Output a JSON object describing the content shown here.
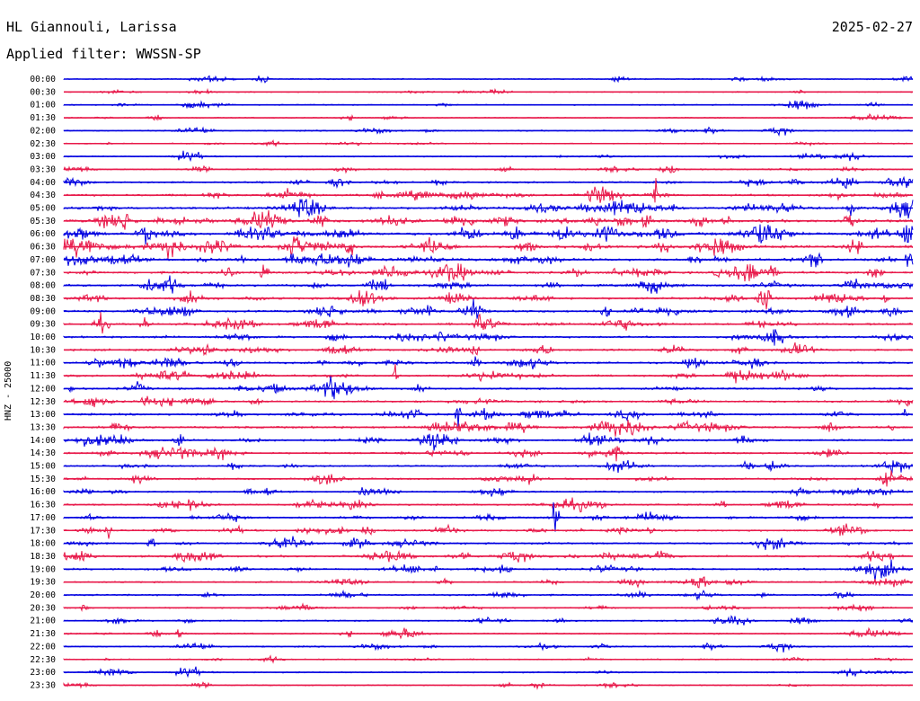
{
  "header": {
    "station": "HL Giannouli, Larissa",
    "date": "2025-02-27",
    "filter": "Applied filter: WWSSN-SP"
  },
  "chart_data": {
    "type": "line",
    "title": "HL Giannouli, Larissa",
    "ylabel": "HNZ - 25000",
    "row_labels": [
      "00:00",
      "00:30",
      "01:00",
      "01:30",
      "02:00",
      "02:30",
      "03:00",
      "03:30",
      "04:00",
      "04:30",
      "05:00",
      "05:30",
      "06:00",
      "06:30",
      "07:00",
      "07:30",
      "08:00",
      "08:30",
      "09:00",
      "09:30",
      "10:00",
      "10:30",
      "11:00",
      "11:30",
      "12:00",
      "12:30",
      "13:00",
      "13:30",
      "14:00",
      "14:30",
      "15:00",
      "15:30",
      "16:00",
      "16:30",
      "17:00",
      "17:30",
      "18:00",
      "18:30",
      "19:00",
      "19:30",
      "20:00",
      "20:30",
      "21:00",
      "21:30",
      "22:00",
      "22:30",
      "23:00",
      "23:30"
    ],
    "series_colors": [
      "#0000e0",
      "#e8194a"
    ],
    "activity_level": [
      0.15,
      0.12,
      0.12,
      0.12,
      0.18,
      0.15,
      0.2,
      0.25,
      0.45,
      0.55,
      0.75,
      0.95,
      1.0,
      0.9,
      0.8,
      0.7,
      0.65,
      0.65,
      0.7,
      0.6,
      0.55,
      0.6,
      0.55,
      0.5,
      0.5,
      0.55,
      0.55,
      0.6,
      0.55,
      0.5,
      0.4,
      0.45,
      0.4,
      0.4,
      0.45,
      0.5,
      0.45,
      0.55,
      0.5,
      0.35,
      0.35,
      0.25,
      0.3,
      0.3,
      0.25,
      0.2,
      0.2,
      0.15
    ]
  }
}
